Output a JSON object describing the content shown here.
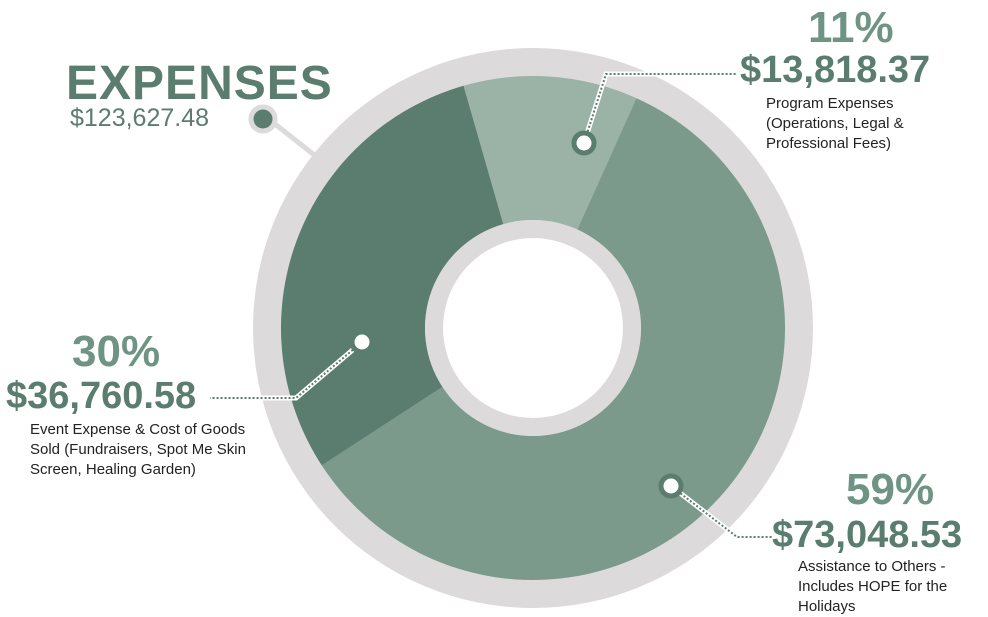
{
  "chart_data": {
    "type": "pie",
    "title": "EXPENSES",
    "total": "$123,627.48",
    "donut": true,
    "slices": [
      {
        "percent_label": "11%",
        "amount_label": "$13,818.37",
        "value": 13818.37,
        "percent": 11,
        "color": "#9bb2a7",
        "description": "Program Expenses (Operations, Legal & Professional Fees)"
      },
      {
        "percent_label": "59%",
        "amount_label": "$73,048.53",
        "value": 73048.53,
        "percent": 59,
        "color": "#7c9a8b",
        "description": "Assistance to Others - Includes HOPE for the Holidays"
      },
      {
        "percent_label": "30%",
        "amount_label": "$36,760.58",
        "value": 36760.58,
        "percent": 30,
        "color": "#5b7d70",
        "description": "Event Expense & Cost of Goods Sold (Fundraisers, Spot Me Skin Screen, Healing Garden)"
      }
    ]
  },
  "colors": {
    "ring": "#dcdadb",
    "accent": "#5b7d70"
  }
}
